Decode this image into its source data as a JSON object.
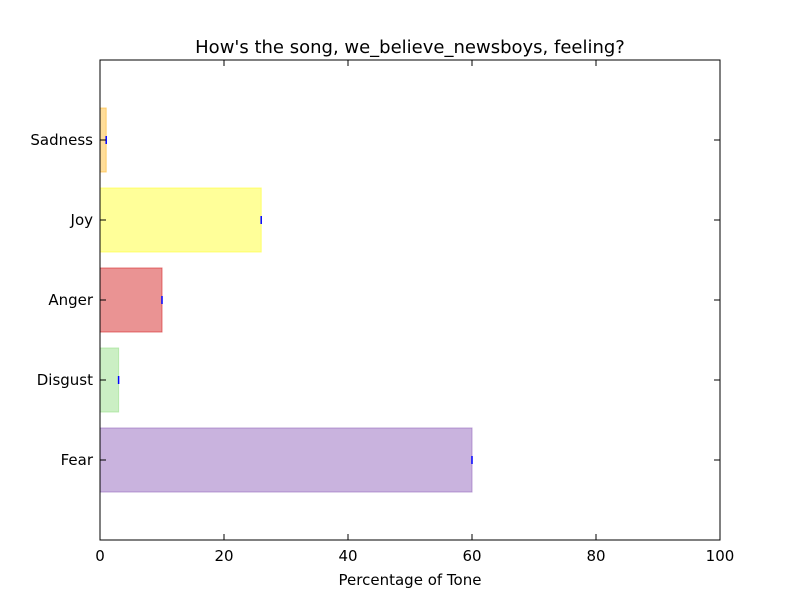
{
  "chart_data": {
    "type": "bar",
    "orientation": "horizontal",
    "title": "How's the song, we_believe_newsboys, feeling?",
    "xlabel": "Percentage of Tone",
    "ylabel": "",
    "xlim": [
      0,
      100
    ],
    "xticks": [
      "0",
      "20",
      "40",
      "60",
      "80",
      "100"
    ],
    "grid": false,
    "categories": [
      "Fear",
      "Disgust",
      "Anger",
      "Joy",
      "Sadness"
    ],
    "values": [
      60,
      3,
      10,
      26,
      1
    ],
    "colors": [
      "#9467bd",
      "#98df8a",
      "#d62728",
      "#ffff33",
      "#ffbb33"
    ],
    "error_marker_color": "#0000ff"
  }
}
